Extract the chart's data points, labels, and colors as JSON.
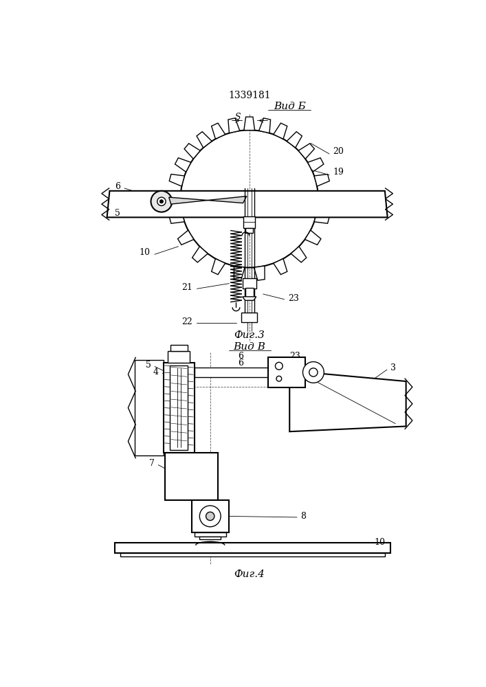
{
  "title": "1339181",
  "fig3_label": "Вид Б",
  "fig3_caption": "Фиг.3",
  "fig4_label": "Вид В",
  "fig4_caption": "Фиг.4",
  "bg_color": "#ffffff",
  "line_color": "#000000"
}
